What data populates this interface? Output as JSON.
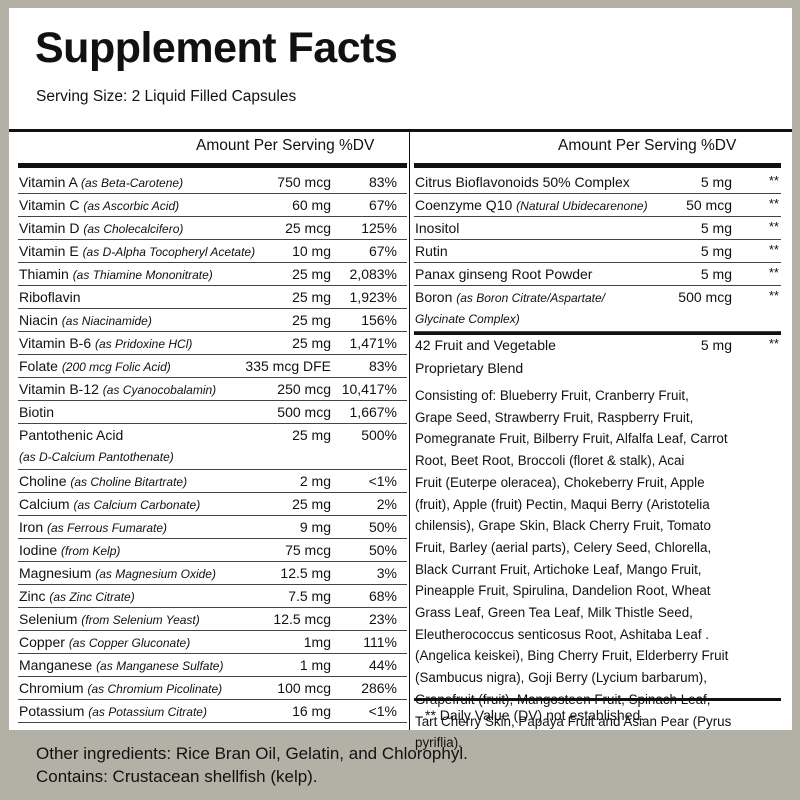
{
  "title": "Supplement Facts",
  "serving_size": "Serving Size: 2 Liquid Filled Capsules",
  "header_left": "Amount Per Serving %DV",
  "header_right": "Amount Per Serving %DV",
  "left_rows": [
    {
      "name": "Vitamin A",
      "sub": "(as Beta-Carotene)",
      "amount": "750 mcg",
      "dv": "83%"
    },
    {
      "name": "Vitamin C",
      "sub": "(as Ascorbic Acid)",
      "amount": "60 mg",
      "dv": "67%"
    },
    {
      "name": "Vitamin D",
      "sub": "(as Cholecalcifero)",
      "amount": "25 mcg",
      "dv": "125%"
    },
    {
      "name": "Vitamin E",
      "sub": "(as D-Alpha Tocopheryl Acetate)",
      "amount": "10 mg",
      "dv": "67%"
    },
    {
      "name": "Thiamin",
      "sub": "(as Thiamine Mononitrate)",
      "amount": "25 mg",
      "dv": "2,083%"
    },
    {
      "name": "Riboflavin",
      "sub": "",
      "amount": "25 mg",
      "dv": "1,923%"
    },
    {
      "name": "Niacin",
      "sub": "(as Niacinamide)",
      "amount": "25 mg",
      "dv": "156%"
    },
    {
      "name": "Vitamin B-6",
      "sub": "(as Pridoxine HCl)",
      "amount": "25 mg",
      "dv": "1,471%"
    },
    {
      "name": "Folate",
      "sub": "(200 mcg Folic Acid)",
      "amount": "335 mcg DFE",
      "dv": "83%"
    },
    {
      "name": "Vitamin B-12",
      "sub": "(as Cyanocobalamin)",
      "amount": "250 mcg",
      "dv": "10,417%"
    },
    {
      "name": "Biotin",
      "sub": "",
      "amount": "500 mcg",
      "dv": "1,667%"
    },
    {
      "name": "Pantothenic Acid",
      "sub": "",
      "sub2": "(as D-Calcium Pantothenate)",
      "amount": "25 mg",
      "dv": "500%"
    },
    {
      "name": "Choline",
      "sub": "(as Choline Bitartrate)",
      "amount": "2 mg",
      "dv": "<1%"
    },
    {
      "name": "Calcium",
      "sub": "(as Calcium Carbonate)",
      "amount": "25 mg",
      "dv": "2%"
    },
    {
      "name": "Iron",
      "sub": "(as Ferrous Fumarate)",
      "amount": "9 mg",
      "dv": "50%"
    },
    {
      "name": "Iodine",
      "sub": "(from Kelp)",
      "amount": "75 mcg",
      "dv": "50%"
    },
    {
      "name": "Magnesium",
      "sub": "(as Magnesium Oxide)",
      "amount": "12.5 mg",
      "dv": "3%"
    },
    {
      "name": "Zinc",
      "sub": "(as Zinc Citrate)",
      "amount": "7.5 mg",
      "dv": "68%"
    },
    {
      "name": "Selenium",
      "sub": "(from Selenium Yeast)",
      "amount": "12.5 mcg",
      "dv": "23%"
    },
    {
      "name": "Copper",
      "sub": "(as Copper Gluconate)",
      "amount": "1mg",
      "dv": "111%"
    },
    {
      "name": "Manganese",
      "sub": "(as Manganese Sulfate)",
      "amount": "1 mg",
      "dv": "44%"
    },
    {
      "name": "Chromium",
      "sub": "(as Chromium Picolinate)",
      "amount": "100 mcg",
      "dv": "286%"
    },
    {
      "name": "Potassium",
      "sub": "(as Potassium Citrate)",
      "amount": "16 mg",
      "dv": "<1%"
    }
  ],
  "right_rows": [
    {
      "name": "Citrus Bioflavonoids 50% Complex",
      "sub": "",
      "amount": "5 mg",
      "dv": "**"
    },
    {
      "name": "Coenzyme Q10",
      "sub": "(Natural Ubidecarenone)",
      "amount": "50 mcg",
      "dv": "**"
    },
    {
      "name": "Inositol",
      "sub": "",
      "amount": "5 mg",
      "dv": "**"
    },
    {
      "name": "Rutin",
      "sub": "",
      "amount": "5 mg",
      "dv": "**"
    },
    {
      "name": "Panax ginseng Root Powder",
      "sub": "",
      "amount": "5 mg",
      "dv": "**"
    },
    {
      "name": "Boron",
      "sub": "(as Boron Citrate/Aspartate/",
      "sub2": "Glycinate Complex)",
      "amount": "500 mcg",
      "dv": "**"
    }
  ],
  "blend": {
    "title_line1": "42 Fruit and Vegetable",
    "title_line2": "Proprietary Blend",
    "amount": "5 mg",
    "dv": "**",
    "consisting": "Consisting of: Blueberry Fruit, Cranberry Fruit,\nGrape Seed, Strawberry Fruit, Raspberry Fruit,\nPomegranate Fruit, Bilberry Fruit, Alfalfa Leaf, Carrot\nRoot, Beet Root, Broccoli (floret & stalk), Acai\nFruit (Euterpe oleracea), Chokeberry Fruit, Apple\n(fruit), Apple (fruit) Pectin, Maqui Berry (Aristotelia\nchilensis), Grape Skin, Black Cherry Fruit, Tomato\nFruit, Barley (aerial parts), Celery Seed, Chlorella,\nBlack Currant Fruit, Artichoke Leaf, Mango Fruit,\nPineapple Fruit, Spirulina, Dandelion Root, Wheat\nGrass Leaf, Green Tea Leaf, Milk Thistle Seed,\nEleutherococcus senticosus Root, Ashitaba Leaf .\n(Angelica keiskei), Bing Cherry Fruit, Elderberry Fruit\n(Sambucus nigra), Goji Berry (Lycium barbarum),\nGrapefruit (fruit), Mangosteen Fruit, Spinach Leaf,\nTart Cherry Skin, Papaya Fruit and Asian Pear (Pyrus\npyriflia)."
  },
  "footnote": "** Daily Value (DV) not established.",
  "other_ingredients": "Other ingredients: Rice Bran Oil, Gelatin, and Chlorophyl.",
  "contains": "Contains: Crustacean shellfish (kelp)."
}
